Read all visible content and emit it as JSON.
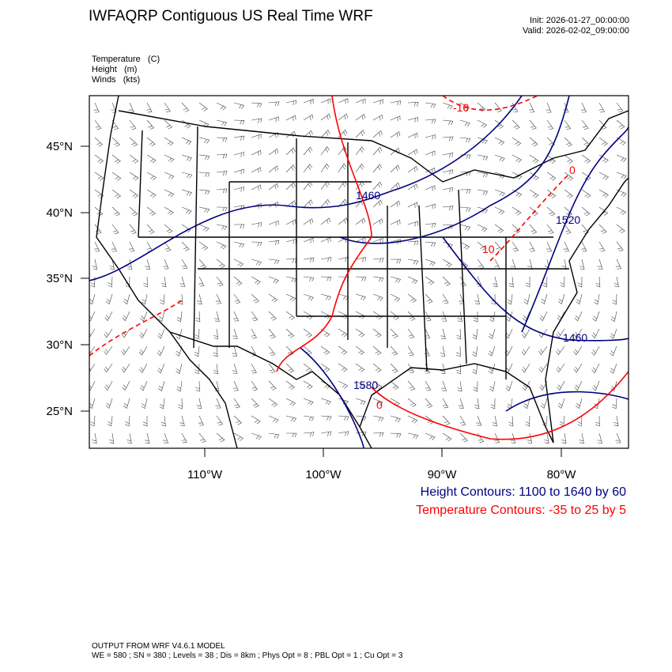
{
  "header": {
    "title": "IWFAQRP Contiguous US Real Time WRF",
    "init": "Init: 2026-01-27_00:00:00",
    "valid": "Valid: 2026-02-02_09:00:00"
  },
  "fields": [
    "Temperature   (C)",
    "Height   (m)",
    "Winds   (kts)"
  ],
  "map": {
    "lon_ticks": [
      "110°W",
      "100°W",
      "90°W",
      "80°W"
    ],
    "lat_ticks": [
      "45°N",
      "40°N",
      "35°N",
      "30°N",
      "25°N"
    ],
    "height_labels": [
      "1460",
      "1520",
      "1460",
      "1580"
    ],
    "temp_labels": [
      "-10",
      "0",
      "10",
      "0"
    ],
    "colors": {
      "height": "#000080",
      "temperature": "#ff0000",
      "borders": "#000000",
      "barbs": "#000000"
    }
  },
  "legend": {
    "height": "Height Contours: 1100 to 1640 by 60",
    "temperature": "Temperature Contours: -35 to 25 by 5"
  },
  "footer": {
    "line1": "OUTPUT FROM WRF V4.6.1 MODEL",
    "line2": "WE = 580 ; SN = 380 ; Levels = 38 ; Dis = 8km ; Phys Opt = 8 ; PBL Opt = 1 ; Cu Opt = 3"
  }
}
